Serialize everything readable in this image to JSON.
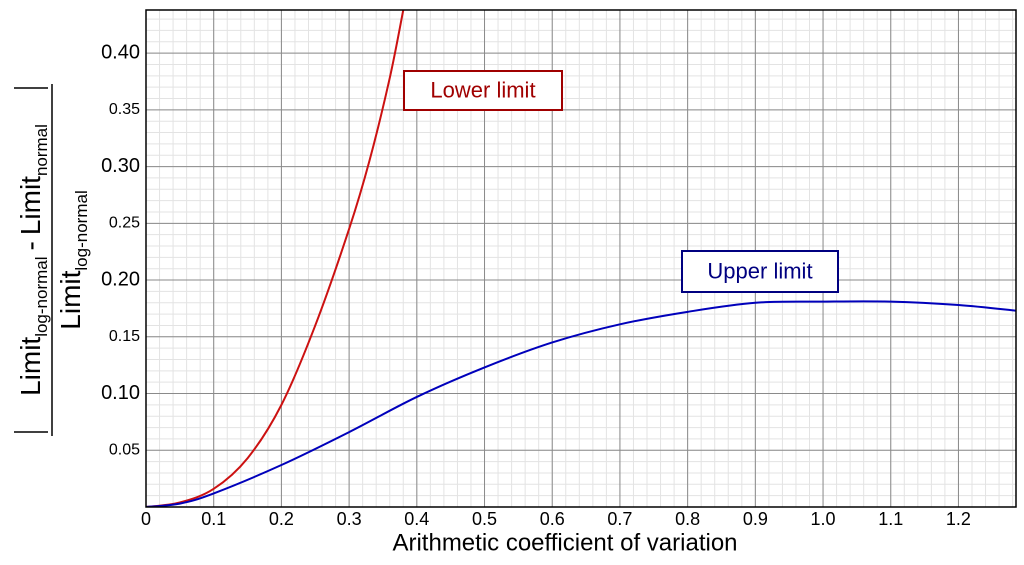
{
  "chart_data": {
    "type": "line",
    "x_label": "Arithmetic coefficient of variation",
    "y_label": {
      "numerator": [
        "Limit",
        "log-normal",
        "-",
        "Limit",
        "normal"
      ],
      "denominator": [
        "Limit",
        "log-normal"
      ]
    },
    "xlim": [
      0,
      1.285
    ],
    "ylim": [
      0,
      0.438
    ],
    "xticks": [
      0,
      0.1,
      0.2,
      0.3,
      0.4,
      0.5,
      0.6,
      0.7,
      0.8,
      0.9,
      {
        "value": 1.0,
        "label": "1.0"
      },
      1.1,
      1.2
    ],
    "yticks": [
      0.05,
      {
        "value": 0.1,
        "label": "0.10"
      },
      0.15,
      {
        "value": 0.2,
        "label": "0.20"
      },
      0.25,
      {
        "value": 0.3,
        "label": "0.30"
      },
      0.35,
      {
        "value": 0.4,
        "label": "0.40"
      }
    ],
    "grid": true,
    "minor_grid": true,
    "series": [
      {
        "name": "Lower limit",
        "color": "#cc1111",
        "x": [
          0,
          0.05,
          0.1,
          0.15,
          0.2,
          0.25,
          0.3,
          0.33,
          0.36,
          0.38
        ],
        "values": [
          0,
          0.004,
          0.016,
          0.043,
          0.09,
          0.16,
          0.245,
          0.305,
          0.378,
          0.438
        ]
      },
      {
        "name": "Upper limit",
        "color": "#0000bb",
        "x": [
          0,
          0.05,
          0.1,
          0.2,
          0.3,
          0.4,
          0.5,
          0.6,
          0.7,
          0.8,
          0.9,
          1.0,
          1.1,
          1.2,
          1.285
        ],
        "values": [
          0,
          0.003,
          0.012,
          0.037,
          0.066,
          0.097,
          0.123,
          0.145,
          0.161,
          0.172,
          0.18,
          0.181,
          0.181,
          0.178,
          0.173
        ]
      }
    ]
  }
}
